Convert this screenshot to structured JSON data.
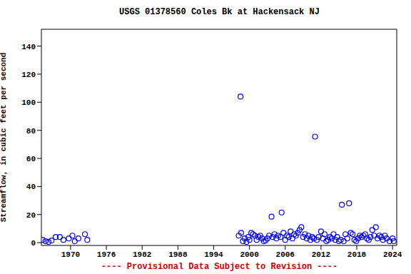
{
  "chart_data": {
    "type": "scatter",
    "title": "USGS 01378560 Coles Bk at Hackensack NJ",
    "y_label": "Streamflow, in cubic feet per second",
    "annotation": "---- Provisional Data Subject to Revision ----",
    "x": [
      1965.3,
      1965.8,
      1966.3,
      1966.8,
      1967.5,
      1968.2,
      1968.8,
      1969.7,
      1970.3,
      1970.7,
      1971.3,
      1972.4,
      1972.8,
      1998.2,
      1998.5,
      1998.6,
      1998.9,
      1999.2,
      1999.5,
      1999.8,
      2000.0,
      2000.3,
      2000.6,
      2000.9,
      2001.2,
      2001.5,
      2001.8,
      2002.1,
      2002.4,
      2002.7,
      2003.0,
      2003.3,
      2003.7,
      2003.9,
      2004.2,
      2004.5,
      2004.8,
      2005.2,
      2005.4,
      2005.7,
      2006.0,
      2006.3,
      2006.6,
      2006.9,
      2007.2,
      2007.5,
      2007.8,
      2008.1,
      2008.4,
      2008.7,
      2009.0,
      2009.3,
      2009.6,
      2009.9,
      2010.2,
      2010.5,
      2010.8,
      2011.0,
      2011.3,
      2011.6,
      2012.0,
      2012.3,
      2012.6,
      2012.9,
      2013.2,
      2013.5,
      2013.8,
      2014.1,
      2014.4,
      2014.7,
      2015.0,
      2015.3,
      2015.5,
      2015.8,
      2016.1,
      2016.4,
      2016.7,
      2017.0,
      2017.3,
      2017.6,
      2017.9,
      2018.2,
      2018.5,
      2018.8,
      2019.1,
      2019.4,
      2019.7,
      2020.0,
      2020.3,
      2020.6,
      2020.9,
      2021.2,
      2021.5,
      2021.8,
      2022.1,
      2022.4,
      2022.7,
      2023.0,
      2023.5,
      2024.0,
      2024.2
    ],
    "values": [
      2,
      1,
      0.5,
      1.5,
      4,
      4,
      2,
      3,
      5,
      1,
      3,
      6,
      2,
      5,
      104,
      7,
      1,
      3,
      0.5,
      4,
      2,
      7,
      6,
      5,
      2,
      4,
      5,
      3,
      1,
      1.5,
      3,
      5,
      18.5,
      4,
      6,
      3,
      5,
      4,
      21.5,
      7,
      2,
      5,
      4,
      8,
      3,
      6,
      5,
      7,
      9,
      11,
      4,
      6,
      3,
      5,
      2,
      4,
      3,
      75.5,
      2,
      4,
      8,
      3,
      6,
      1,
      2,
      4,
      3,
      6,
      2,
      4,
      1,
      2,
      27,
      1,
      6,
      3,
      28,
      7,
      6,
      2,
      1,
      3,
      5,
      4,
      5,
      6,
      3,
      2,
      4,
      9,
      5,
      11,
      3,
      5,
      4,
      2,
      5,
      3,
      1,
      3,
      1
    ],
    "color": "#0000ff",
    "marker": "circle",
    "xlim": [
      1965.1,
      2024.7
    ],
    "xticks": [
      1970,
      1976,
      1982,
      1988,
      1994,
      2000,
      2006,
      2012,
      2018,
      2024
    ],
    "ylim": [
      -2,
      152
    ],
    "yticks": [
      0,
      20,
      40,
      60,
      80,
      100,
      120,
      140
    ],
    "grid": false
  }
}
